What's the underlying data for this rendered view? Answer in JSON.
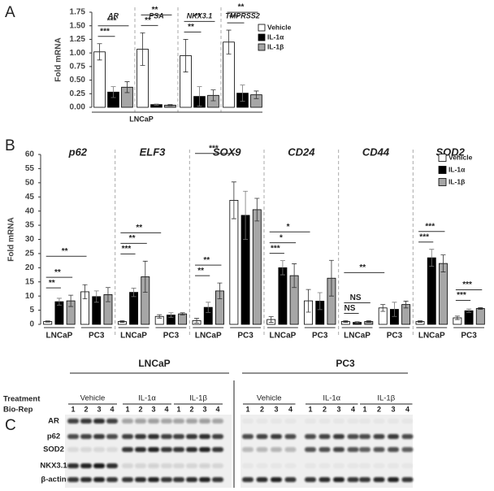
{
  "panel_labels": [
    "A",
    "B",
    "C"
  ],
  "chart_data": [
    {
      "type": "bar",
      "categories": [
        "AR",
        "PSA",
        "NKX3.1",
        "TMPRSS2"
      ],
      "ylabel": "Fold mRNA",
      "xlabel": "LNCaP",
      "ylim": [
        0,
        1.75
      ],
      "yticks": [
        {
          "value": 0,
          "label": "0.00"
        },
        0.25,
        {
          "value": 0.5,
          "label": "0.50"
        },
        0.75,
        {
          "value": 1,
          "label": "1.00"
        },
        1.25,
        {
          "value": 1.5,
          "label": "1.50"
        },
        1.75
      ],
      "series": [
        {
          "name": "Vehicle",
          "color": "#ffffff",
          "values": [
            1.02,
            1.07,
            0.95,
            1.2
          ],
          "errors": [
            0.15,
            0.3,
            0.3,
            0.22
          ]
        },
        {
          "name": "IL-1α",
          "color": "#000000",
          "values": [
            0.28,
            0.05,
            0.2,
            0.26
          ],
          "errors": [
            0.1,
            0.01,
            0.18,
            0.15
          ]
        },
        {
          "name": "IL-1β",
          "color": "#a6a6a6",
          "values": [
            0.37,
            0.04,
            0.22,
            0.23
          ],
          "errors": [
            0.1,
            0.01,
            0.1,
            0.07
          ]
        }
      ],
      "significance": [
        [
          "***",
          "***"
        ],
        [
          "**",
          "**"
        ],
        [
          "**",
          "**"
        ],
        [
          "***",
          "**"
        ]
      ]
    },
    {
      "type": "bar",
      "groups": [
        "p62",
        "ELF3",
        "SOX9",
        "CD24",
        "CD44",
        "SOD2"
      ],
      "categories": [
        "LNCaP",
        "PC3",
        "LNCaP",
        "PC3",
        "LNCaP",
        "PC3",
        "LNCaP",
        "PC3",
        "LNCaP",
        "PC3",
        "LNCaP",
        "PC3"
      ],
      "ylabel": "Fold mRNA",
      "ylim": [
        0,
        60
      ],
      "yticks": [
        0,
        5,
        10,
        15,
        20,
        25,
        30,
        35,
        40,
        45,
        50,
        55,
        60
      ],
      "series": [
        {
          "name": "Vehicle",
          "color": "#ffffff",
          "values": [
            1,
            11.5,
            1,
            2.8,
            1.3,
            43.8,
            1.7,
            8.3,
            1,
            5.8,
            1,
            2.3
          ],
          "errors": [
            0.2,
            2.5,
            0.3,
            0.6,
            0.8,
            6.5,
            1,
            4,
            0.3,
            1.2,
            0.3,
            0.6
          ]
        },
        {
          "name": "IL-1α",
          "color": "#000000",
          "values": [
            8,
            9.8,
            11.3,
            3.3,
            6,
            38.5,
            20,
            8.2,
            0.7,
            5.3,
            23.5,
            4.8
          ],
          "errors": [
            1.2,
            2,
            1.5,
            0.8,
            1.8,
            8.5,
            2.5,
            3,
            0.3,
            2.5,
            3,
            0.6
          ]
        },
        {
          "name": "IL-1β",
          "color": "#a6a6a6",
          "values": [
            8.3,
            10.5,
            16.8,
            3.7,
            11.8,
            40.5,
            17.2,
            16.3,
            1,
            7,
            21.5,
            5.6
          ],
          "errors": [
            2,
            2.5,
            5.5,
            0.4,
            2.8,
            4,
            4.2,
            6.3,
            0.3,
            1.2,
            3,
            0.3
          ]
        }
      ],
      "significance": [
        [
          "**",
          "**",
          "**"
        ],
        [],
        [
          "***",
          "**",
          "**"
        ],
        [],
        [
          "**",
          "**",
          "***"
        ],
        [],
        [
          "***",
          "*",
          "*"
        ],
        [],
        [
          "NS",
          "NS",
          "**"
        ],
        [],
        [
          "***",
          "***"
        ],
        [
          "***",
          "***"
        ]
      ]
    }
  ],
  "blot": {
    "cell_lines": [
      "LNCaP",
      "PC3"
    ],
    "treatment_label": "Treatment",
    "biorep_label": "Bio-Rep",
    "treatments": [
      "Vehicle",
      "IL-1α",
      "IL-1β"
    ],
    "reps": [
      "1",
      "2",
      "3",
      "4"
    ],
    "proteins": [
      "AR",
      "p62",
      "SOD2",
      "NKX3.1",
      "β-actin"
    ]
  }
}
